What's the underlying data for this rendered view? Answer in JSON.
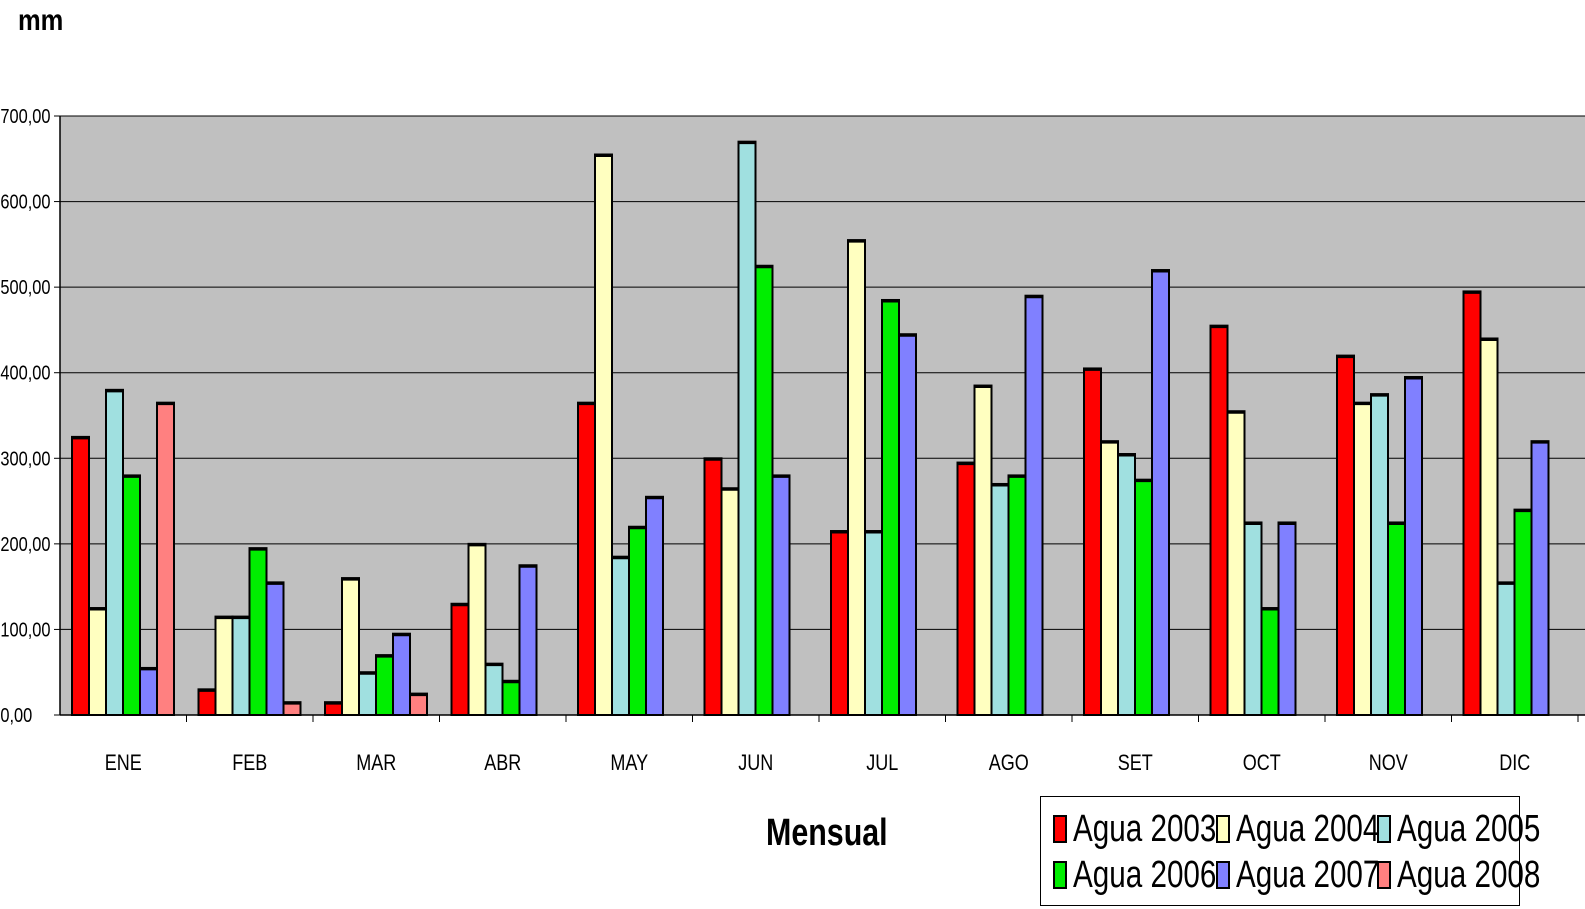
{
  "chart_data": {
    "type": "bar",
    "ylabel": "mm",
    "xlabel": "Mensual",
    "categories": [
      "ENE",
      "FEB",
      "MAR",
      "ABR",
      "MAY",
      "JUN",
      "JUL",
      "AGO",
      "SET",
      "OCT",
      "NOV",
      "DIC"
    ],
    "ylim": [
      0,
      700
    ],
    "yticks": [
      "0,00",
      "100,00",
      "200,00",
      "300,00",
      "400,00",
      "500,00",
      "600,00",
      "700,00"
    ],
    "grid": true,
    "legend_position": "bottom-right",
    "series": [
      {
        "name": "Agua 2003",
        "color": "#ff0000",
        "values": [
          325,
          30,
          15,
          130,
          365,
          300,
          215,
          295,
          405,
          455,
          420,
          495
        ]
      },
      {
        "name": "Agua 2004",
        "color": "#ffffc0",
        "values": [
          125,
          115,
          160,
          200,
          655,
          265,
          555,
          385,
          320,
          355,
          365,
          440
        ]
      },
      {
        "name": "Agua 2005",
        "color": "#a0e0e0",
        "values": [
          380,
          115,
          50,
          60,
          185,
          670,
          215,
          270,
          305,
          225,
          375,
          155
        ]
      },
      {
        "name": "Agua 2006",
        "color": "#00ee00",
        "values": [
          280,
          195,
          70,
          40,
          220,
          525,
          485,
          280,
          275,
          125,
          225,
          240
        ]
      },
      {
        "name": "Agua 2007",
        "color": "#8080ff",
        "values": [
          55,
          155,
          95,
          175,
          255,
          280,
          445,
          490,
          520,
          225,
          395,
          320
        ]
      },
      {
        "name": "Agua 2008",
        "color": "#ff8080",
        "values": [
          365,
          15,
          25,
          null,
          null,
          null,
          null,
          null,
          null,
          null,
          null,
          null
        ]
      }
    ]
  }
}
